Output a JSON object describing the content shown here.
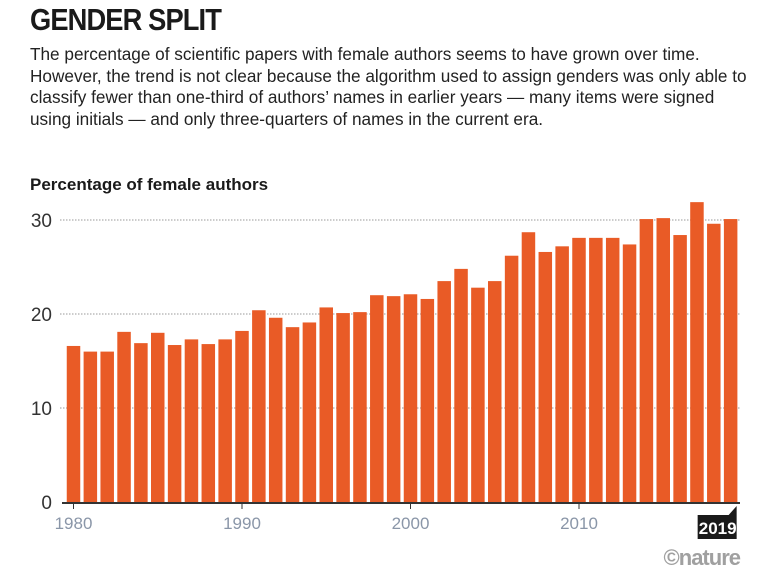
{
  "title": "GENDER SPLIT",
  "subtitle": "The percentage of scientific papers with female authors seems to have grown over time. However, the trend is not clear because the algorithm used to assign genders was only able to classify fewer than one-third of authors’ names in earlier years — many items were signed using initials — and only three-quarters of names in the current era.",
  "credit": "©nature",
  "chart_data": {
    "type": "bar",
    "title": "GENDER SPLIT",
    "ylabel": "Percentage of female authors",
    "xlabel": "",
    "ylim": [
      0,
      32
    ],
    "yticks": [
      0,
      10,
      20,
      30
    ],
    "xticks": [
      "1980",
      "1990",
      "2000",
      "2010"
    ],
    "highlight_label": "2019",
    "color": "#e95b26",
    "categories": [
      1980,
      1981,
      1982,
      1983,
      1984,
      1985,
      1986,
      1987,
      1988,
      1989,
      1990,
      1991,
      1992,
      1993,
      1994,
      1995,
      1996,
      1997,
      1998,
      1999,
      2000,
      2001,
      2002,
      2003,
      2004,
      2005,
      2006,
      2007,
      2008,
      2009,
      2010,
      2011,
      2012,
      2013,
      2014,
      2015,
      2016,
      2017,
      2018,
      2019
    ],
    "values": [
      16.6,
      16.0,
      16.0,
      18.1,
      16.9,
      18.0,
      16.7,
      17.3,
      16.8,
      17.3,
      18.2,
      20.4,
      19.6,
      18.6,
      19.1,
      20.7,
      20.1,
      20.2,
      22.0,
      21.9,
      22.1,
      21.6,
      23.5,
      24.8,
      22.8,
      23.5,
      26.2,
      28.7,
      26.6,
      27.2,
      28.1,
      28.1,
      28.1,
      27.4,
      30.1,
      30.2,
      28.4,
      31.9,
      29.6,
      30.1
    ]
  }
}
